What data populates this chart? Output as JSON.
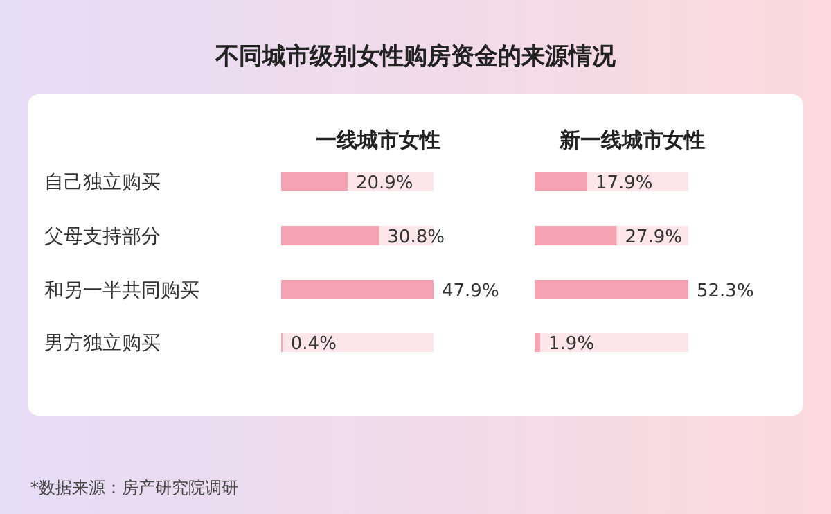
{
  "chart_data": [
    {
      "type": "bar",
      "orientation": "horizontal",
      "title": "不同城市级别女性购房资金的来源情况",
      "subtitle": "一线城市女性",
      "categories": [
        "自己独立购买",
        "父母支持部分",
        "和另一半共同购买",
        "男方独立购买"
      ],
      "values": [
        20.9,
        30.8,
        47.9,
        0.4
      ],
      "value_labels": [
        "20.9%",
        "30.8%",
        "47.9%",
        "0.4%"
      ],
      "color": "#f5a3b3",
      "xlim": [
        0,
        47.9
      ],
      "tick_labels": "y",
      "annotations": [
        "*数据来源：房产研究院调研"
      ]
    },
    {
      "type": "bar",
      "orientation": "horizontal",
      "subtitle": "新一线城市女性",
      "categories": [
        null,
        null,
        null,
        null
      ],
      "values": [
        17.9,
        27.9,
        52.3,
        1.9
      ],
      "value_labels": [
        "17.9%",
        "27.9%",
        "52.3%",
        "1.9%"
      ],
      "color": "#f5a3b3",
      "xlim": [
        0,
        52.3
      ],
      "tick_labels": false
    }
  ]
}
